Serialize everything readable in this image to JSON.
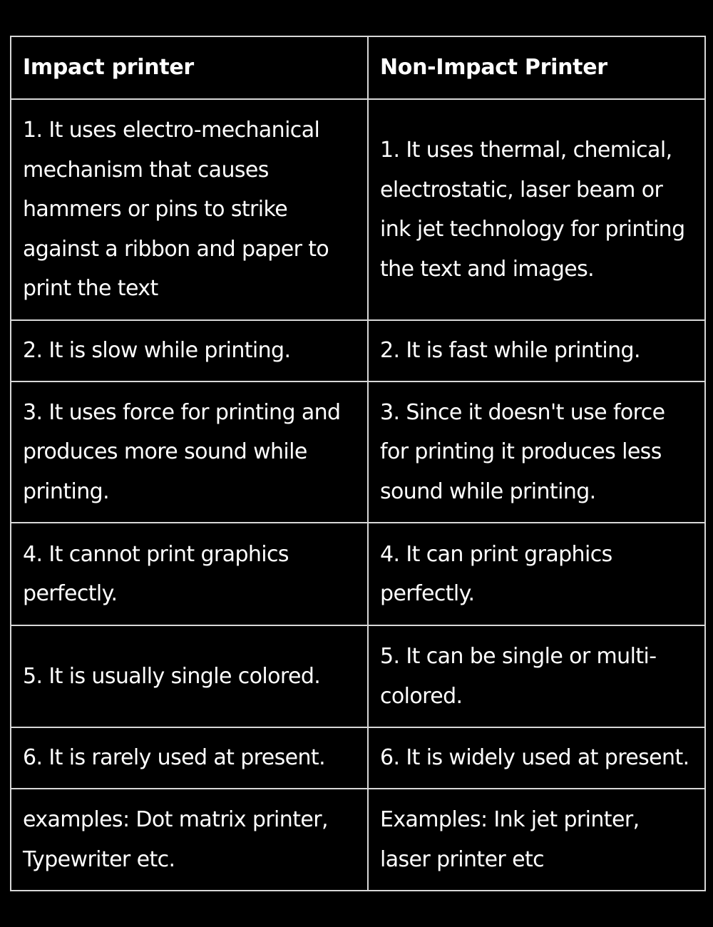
{
  "table": {
    "headers": [
      "Impact printer",
      "Non-Impact Printer"
    ],
    "rows": [
      [
        "1. It uses electro-mechanical mechanism that causes hammers or pins to strike against a ribbon and paper to print the text",
        "1. It uses thermal, chemical, electrostatic, laser beam or ink jet technology for printing the text and images."
      ],
      [
        "2. It is slow while printing.",
        "2. It is fast while printing."
      ],
      [
        "3. It uses force for printing and produces more sound while printing.",
        "3. Since it doesn't use  force for printing it produces less sound while printing."
      ],
      [
        "4. It cannot print graphics perfectly.",
        "4. It can print graphics perfectly."
      ],
      [
        "5. It is usually single colored.",
        "5. It can be single or multi-colored."
      ],
      [
        "6. It is rarely used at present.",
        "6. It is widely used at present."
      ],
      [
        "examples: Dot matrix printer, Typewriter etc.",
        "Examples: Ink jet printer, laser printer etc"
      ]
    ]
  },
  "colors": {
    "background": "#000000",
    "text": "#ffffff",
    "border": "#d8d8d8"
  }
}
